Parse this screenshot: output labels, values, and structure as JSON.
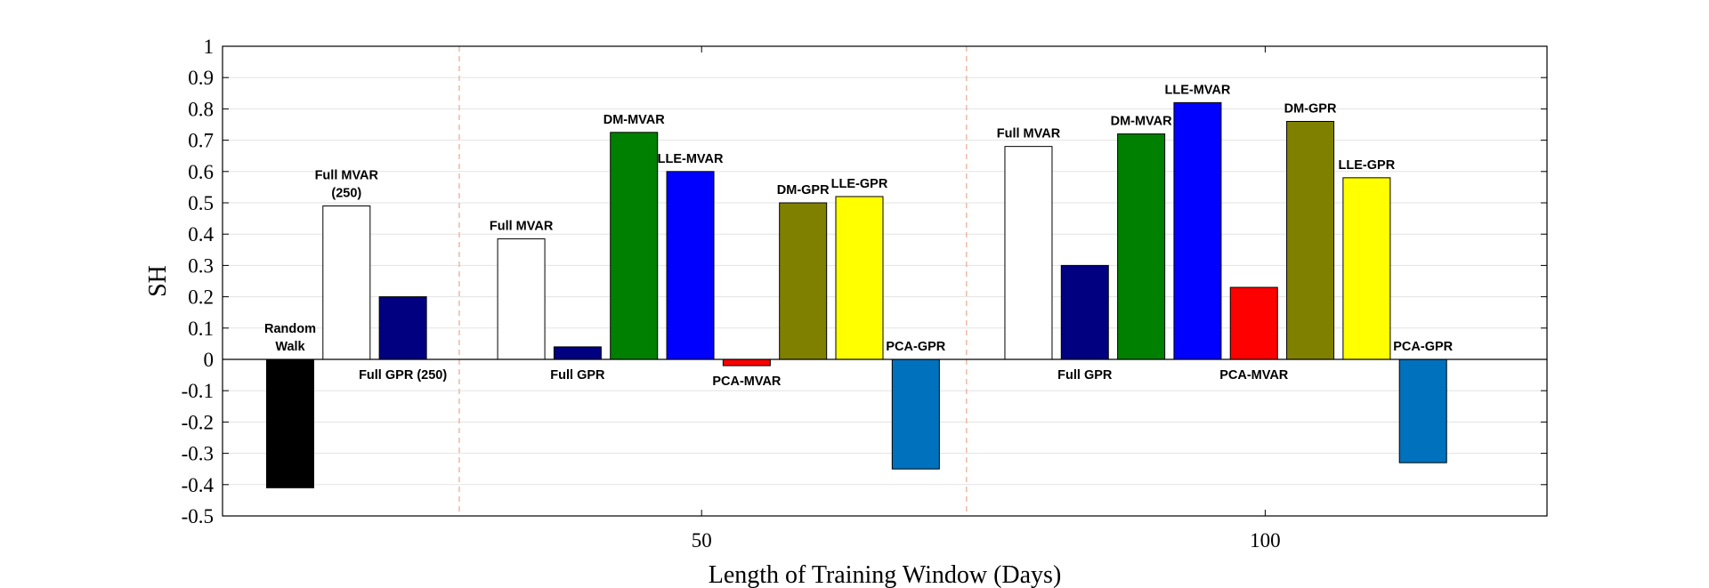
{
  "chart_data": {
    "type": "bar",
    "title": "",
    "xlabel": "Length of Training Window (Days)",
    "ylabel": "SH",
    "ylim": [
      -0.5,
      1
    ],
    "yticks": [
      -0.5,
      -0.4,
      -0.3,
      -0.2,
      -0.1,
      0,
      0.1,
      0.2,
      0.3,
      0.4,
      0.5,
      0.6,
      0.7,
      0.8,
      0.9,
      1
    ],
    "ytick_labels": [
      "-0.5",
      "-0.4",
      "-0.3",
      "-0.2",
      "-0.1",
      "0",
      "0.1",
      "0.2",
      "0.3",
      "0.4",
      "0.5",
      "0.6",
      "0.7",
      "0.8",
      "0.9",
      "1"
    ],
    "xlim": [
      0,
      23.5
    ],
    "xticks": [
      8.5,
      18.5
    ],
    "xtick_labels": [
      "50",
      "100"
    ],
    "separators": [
      4.2,
      13.2
    ],
    "grid": "horizontal",
    "bars": [
      {
        "x": 1.2,
        "value": -0.41,
        "color": "#000000",
        "label_lines": [
          "Random",
          "Walk"
        ],
        "label_pos": "above-zero"
      },
      {
        "x": 2.2,
        "value": 0.49,
        "color": "#ffffff",
        "label_lines": [
          "Full MVAR",
          "(250)"
        ],
        "label_pos": "above"
      },
      {
        "x": 3.2,
        "value": 0.2,
        "color": "#000080",
        "label_lines": [
          "Full GPR (250)"
        ],
        "label_pos": "below-zero"
      },
      {
        "x": 5.3,
        "value": 0.385,
        "color": "#ffffff",
        "label_lines": [
          "Full MVAR"
        ],
        "label_pos": "above"
      },
      {
        "x": 6.3,
        "value": 0.04,
        "color": "#000080",
        "label_lines": [
          "Full GPR"
        ],
        "label_pos": "below-zero"
      },
      {
        "x": 7.3,
        "value": 0.725,
        "color": "#008000",
        "label_lines": [
          "DM-MVAR"
        ],
        "label_pos": "above"
      },
      {
        "x": 8.3,
        "value": 0.6,
        "color": "#0000ff",
        "label_lines": [
          "LLE-MVAR"
        ],
        "label_pos": "above"
      },
      {
        "x": 9.3,
        "value": -0.02,
        "color": "#ff0000",
        "label_lines": [
          "PCA-MVAR"
        ],
        "label_pos": "below-zero"
      },
      {
        "x": 10.3,
        "value": 0.5,
        "color": "#808000",
        "label_lines": [
          "DM-GPR"
        ],
        "label_pos": "above"
      },
      {
        "x": 11.3,
        "value": 0.52,
        "color": "#ffff00",
        "label_lines": [
          "LLE-GPR"
        ],
        "label_pos": "above"
      },
      {
        "x": 12.3,
        "value": -0.35,
        "color": "#0072bd",
        "label_lines": [
          "PCA-GPR"
        ],
        "label_pos": "above-zero"
      },
      {
        "x": 14.3,
        "value": 0.68,
        "color": "#ffffff",
        "label_lines": [
          "Full MVAR"
        ],
        "label_pos": "above"
      },
      {
        "x": 15.3,
        "value": 0.3,
        "color": "#000080",
        "label_lines": [
          "Full GPR"
        ],
        "label_pos": "below-zero"
      },
      {
        "x": 16.3,
        "value": 0.72,
        "color": "#008000",
        "label_lines": [
          "DM-MVAR"
        ],
        "label_pos": "above"
      },
      {
        "x": 17.3,
        "value": 0.82,
        "color": "#0000ff",
        "label_lines": [
          "LLE-MVAR"
        ],
        "label_pos": "above"
      },
      {
        "x": 18.3,
        "value": 0.23,
        "color": "#ff0000",
        "label_lines": [
          "PCA-MVAR"
        ],
        "label_pos": "below-zero"
      },
      {
        "x": 19.3,
        "value": 0.76,
        "color": "#808000",
        "label_lines": [
          "DM-GPR"
        ],
        "label_pos": "above"
      },
      {
        "x": 20.3,
        "value": 0.58,
        "color": "#ffff00",
        "label_lines": [
          "LLE-GPR"
        ],
        "label_pos": "above"
      },
      {
        "x": 21.3,
        "value": -0.33,
        "color": "#0072bd",
        "label_lines": [
          "PCA-GPR"
        ],
        "label_pos": "above-zero"
      }
    ]
  }
}
